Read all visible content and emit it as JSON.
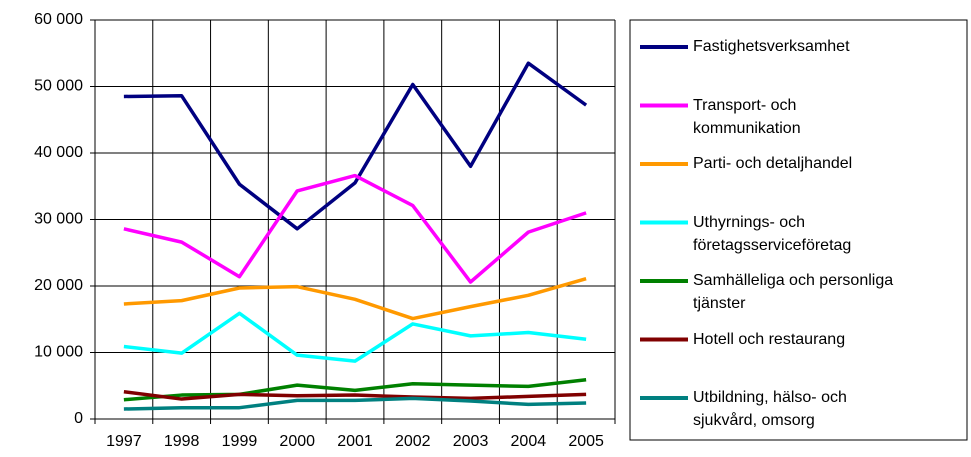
{
  "chart_data": {
    "type": "line",
    "categories": [
      "1997",
      "1998",
      "1999",
      "2000",
      "2001",
      "2002",
      "2003",
      "2004",
      "2005"
    ],
    "series": [
      {
        "name": "Fastighetsverksamhet",
        "color": "#000080",
        "values": [
          48500,
          48600,
          35300,
          28600,
          35500,
          50300,
          38000,
          53500,
          47200
        ]
      },
      {
        "name": "Transport- och kommunikation",
        "color": "#ff00ff",
        "values": [
          28600,
          26600,
          21400,
          34300,
          36600,
          32100,
          20600,
          28100,
          31000
        ]
      },
      {
        "name": "Parti- och detaljhandel",
        "color": "#ff9900",
        "values": [
          17300,
          17800,
          19700,
          19900,
          18000,
          15100,
          16900,
          18600,
          21100
        ]
      },
      {
        "name": "Uthyrnings- och företagsserviceföretag",
        "color": "#00ffff",
        "values": [
          10900,
          9900,
          15900,
          9600,
          8700,
          14300,
          12500,
          13000,
          12000
        ]
      },
      {
        "name": "Samhälleliga och personliga tjänster",
        "color": "#008000",
        "values": [
          2900,
          3600,
          3700,
          5100,
          4300,
          5300,
          5100,
          4900,
          5900
        ]
      },
      {
        "name": "Hotell  och restaurang",
        "color": "#800000",
        "values": [
          4100,
          3000,
          3700,
          3500,
          3600,
          3300,
          3100,
          3400,
          3700
        ]
      },
      {
        "name": "Utbildning, hälso- och sjukvård, omsorg",
        "color": "#008080",
        "values": [
          1500,
          1700,
          1700,
          2800,
          2800,
          3100,
          2700,
          2200,
          2400
        ]
      }
    ],
    "ylim": [
      0,
      60000
    ],
    "yticks": [
      {
        "value": 0,
        "label": "0"
      },
      {
        "value": 10000,
        "label": "10 000"
      },
      {
        "value": 20000,
        "label": "20 000"
      },
      {
        "value": 30000,
        "label": "30 000"
      },
      {
        "value": 40000,
        "label": "40 000"
      },
      {
        "value": 50000,
        "label": "50 000"
      },
      {
        "value": 60000,
        "label": "60 000"
      }
    ],
    "grid": true,
    "legend": "right"
  }
}
